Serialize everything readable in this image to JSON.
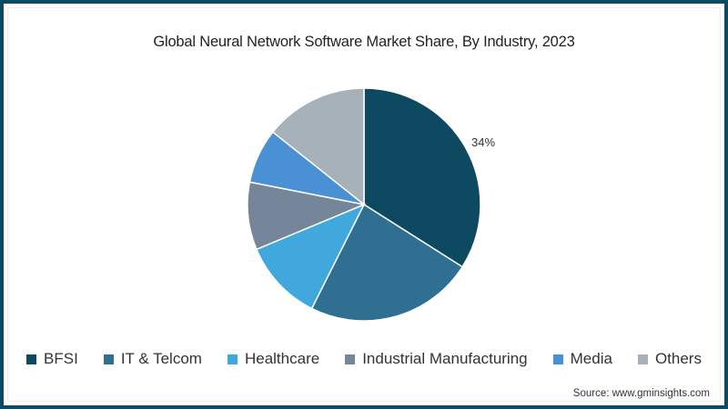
{
  "chart_data": {
    "type": "pie",
    "title": "Global Neural Network Software Market Share, By Industry, 2023",
    "categories": [
      "BFSI",
      "IT & Telcom",
      "Healthcare",
      "Industrial Manufacturing",
      "Media",
      "Others"
    ],
    "values": [
      34,
      23.4,
      11.3,
      9.4,
      7.6,
      14.3
    ],
    "colors": [
      "#0d4a62",
      "#2f6f91",
      "#41a8dd",
      "#76869a",
      "#4a90d4",
      "#a6b1ba"
    ],
    "data_labels": [
      {
        "category": "BFSI",
        "text": "34%"
      }
    ],
    "legend_position": "bottom",
    "start_angle_deg": 0,
    "direction": "clockwise"
  },
  "source": "Source: www.gminsights.com",
  "border_color": "#0d4a62"
}
